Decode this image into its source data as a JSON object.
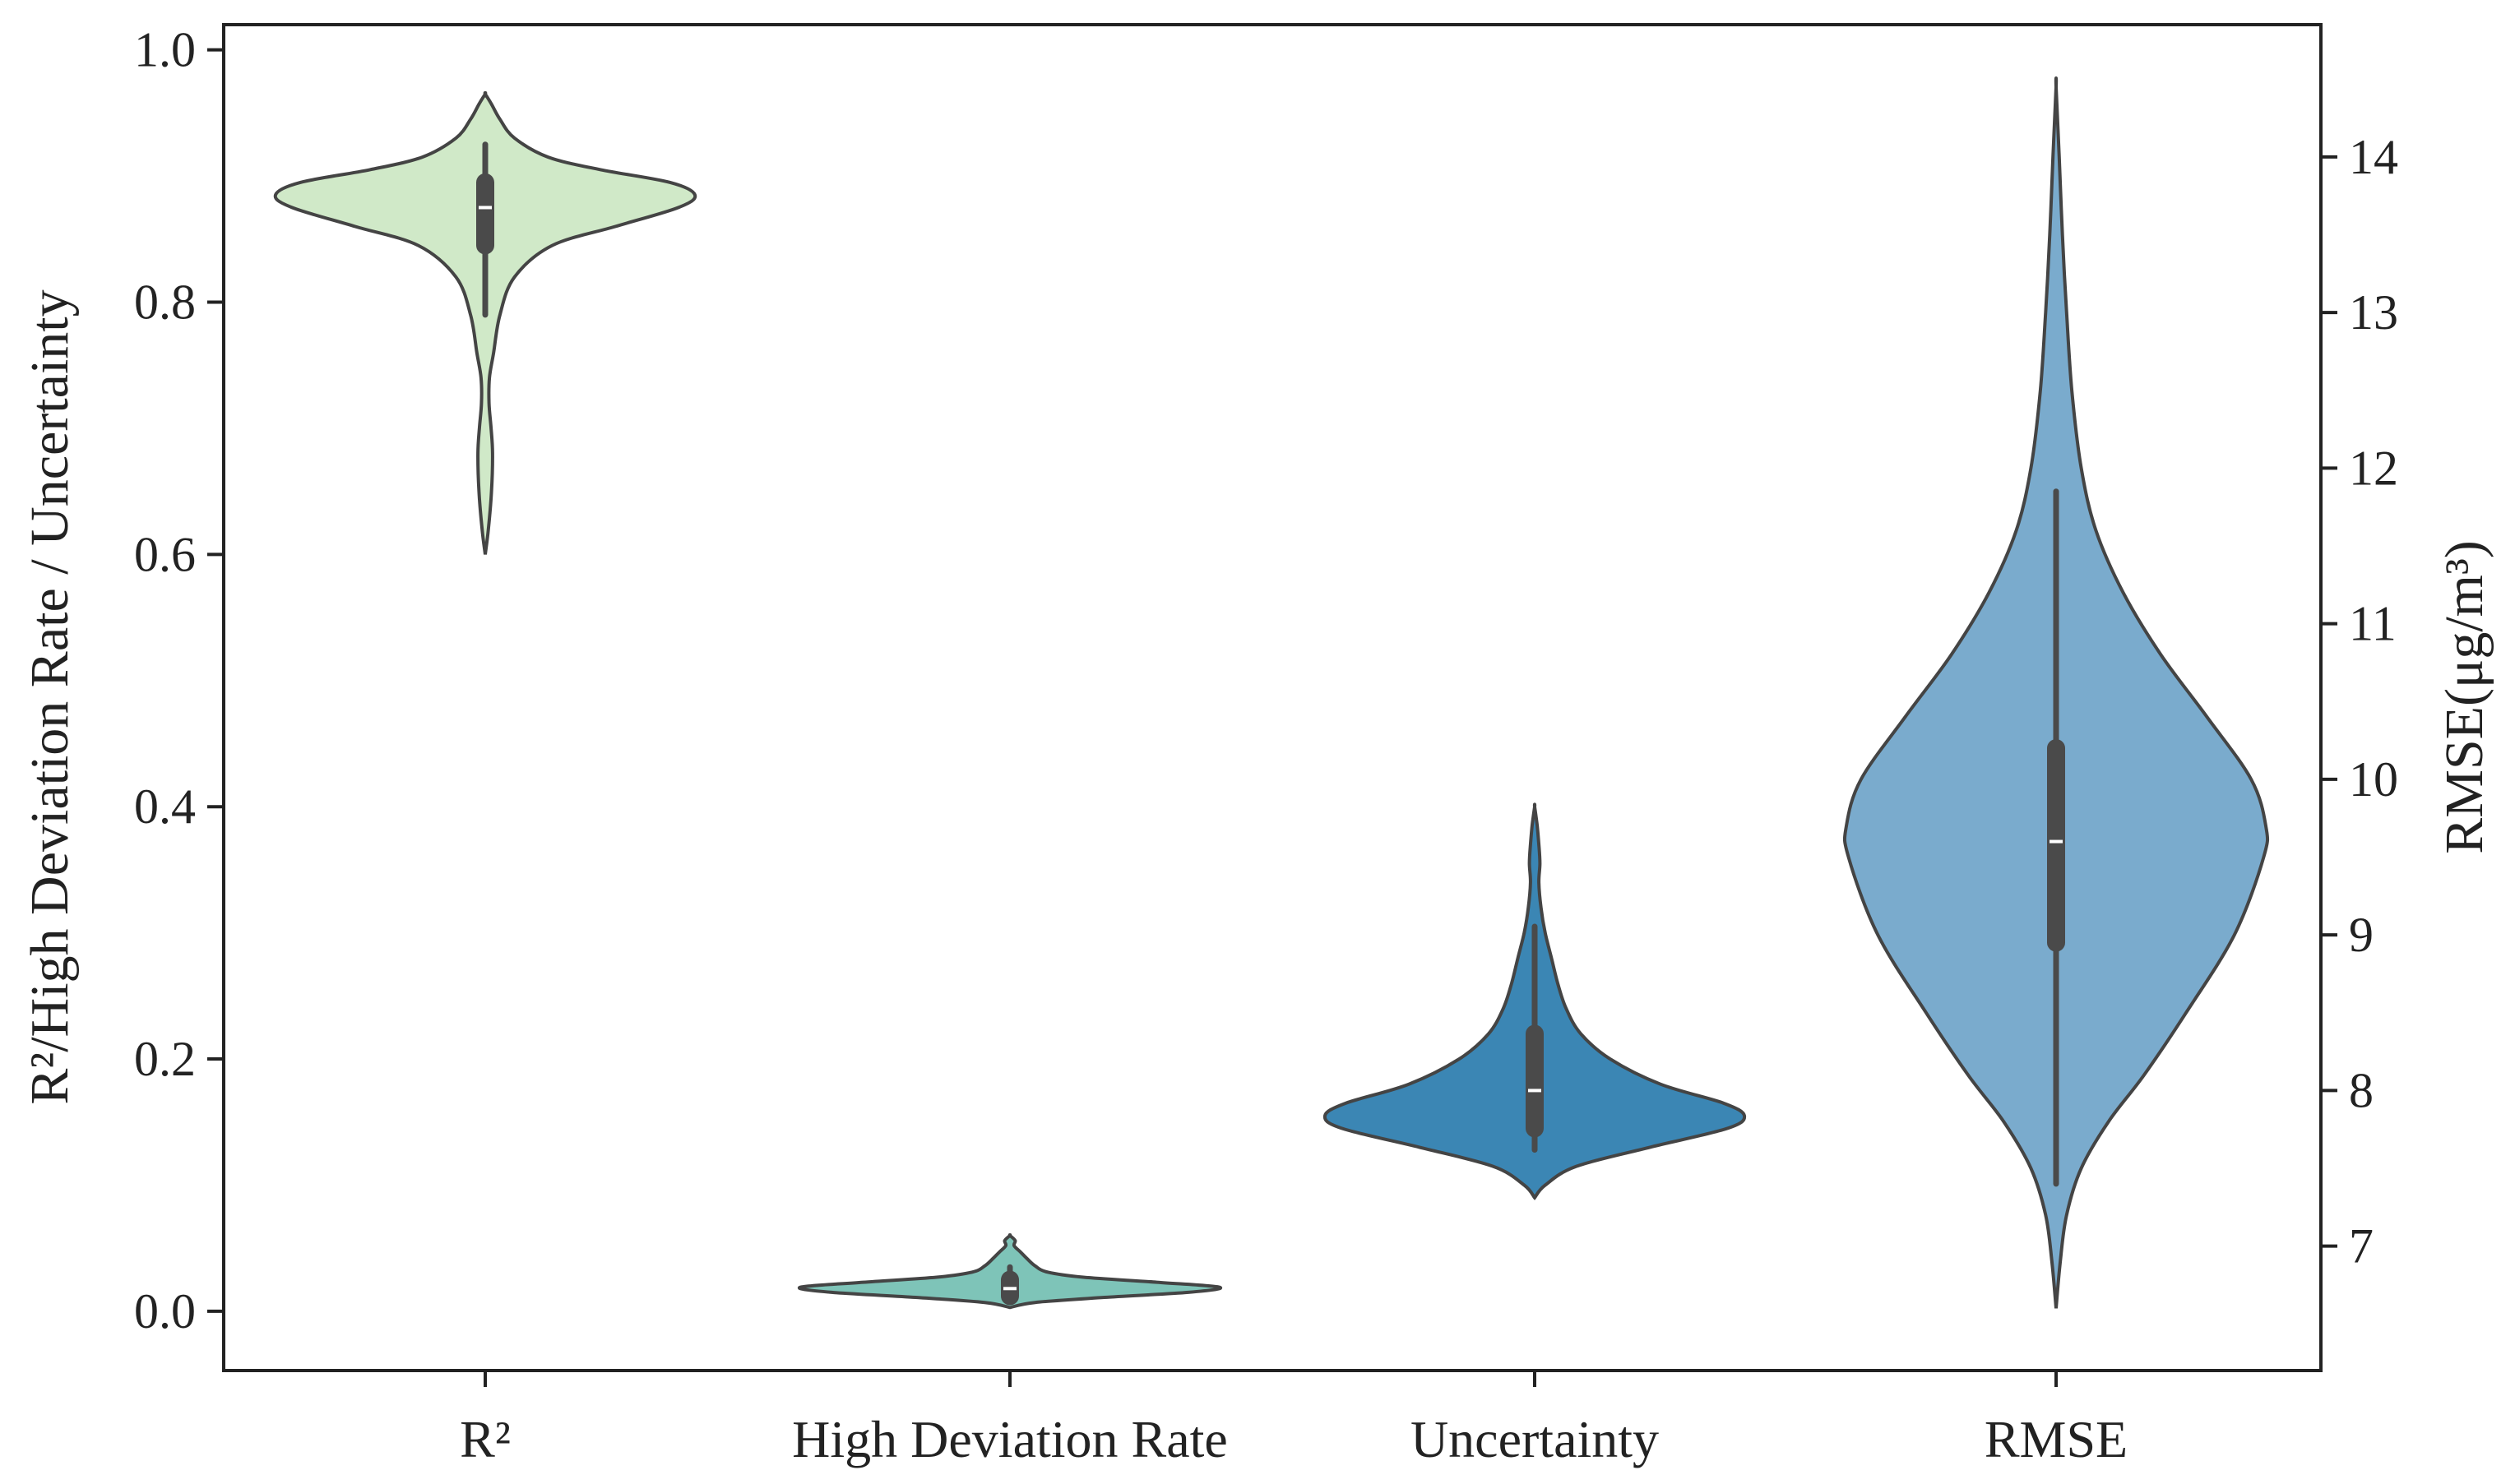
{
  "chart_data": {
    "type": "violin",
    "title": "",
    "categories": [
      "R²",
      "High Deviation Rate",
      "Uncertainty",
      "RMSE"
    ],
    "ylabel_left": "R²/High Deviation Rate / Uncertainty",
    "ylabel_right": "RMSE(μg/m³)",
    "left_ticks": [
      "0.0",
      "0.2",
      "0.4",
      "0.6",
      "0.8",
      "1.0"
    ],
    "right_ticks": [
      "7",
      "8",
      "9",
      "10",
      "11",
      "12",
      "13",
      "14"
    ],
    "ylim_left": [
      -0.047,
      1.02
    ],
    "ylim_right": [
      6.2,
      14.85
    ],
    "grid": false,
    "series": [
      {
        "name": "R²",
        "axis": "left",
        "color": "#d0e9c8",
        "min": 0.6,
        "max": 0.965,
        "whisker_low": 0.79,
        "q1": 0.845,
        "median": 0.875,
        "q3": 0.895,
        "whisker_high": 0.925,
        "profile": [
          [
            0.6,
            0.0
          ],
          [
            0.62,
            0.015
          ],
          [
            0.65,
            0.03
          ],
          [
            0.68,
            0.035
          ],
          [
            0.7,
            0.028
          ],
          [
            0.72,
            0.018
          ],
          [
            0.74,
            0.02
          ],
          [
            0.76,
            0.04
          ],
          [
            0.79,
            0.07
          ],
          [
            0.82,
            0.14
          ],
          [
            0.845,
            0.32
          ],
          [
            0.86,
            0.62
          ],
          [
            0.875,
            0.92
          ],
          [
            0.885,
            1.0
          ],
          [
            0.895,
            0.88
          ],
          [
            0.905,
            0.55
          ],
          [
            0.915,
            0.3
          ],
          [
            0.93,
            0.14
          ],
          [
            0.945,
            0.07
          ],
          [
            0.957,
            0.03
          ],
          [
            0.965,
            0.0
          ]
        ]
      },
      {
        "name": "High Deviation Rate",
        "axis": "left",
        "color": "#7ec4b8",
        "min": 0.003,
        "max": 0.06,
        "whisker_low": 0.008,
        "q1": 0.012,
        "median": 0.018,
        "q3": 0.025,
        "whisker_high": 0.035,
        "profile": [
          [
            0.003,
            0.0
          ],
          [
            0.007,
            0.12
          ],
          [
            0.011,
            0.45
          ],
          [
            0.015,
            0.85
          ],
          [
            0.019,
            1.0
          ],
          [
            0.023,
            0.7
          ],
          [
            0.027,
            0.35
          ],
          [
            0.031,
            0.18
          ],
          [
            0.036,
            0.12
          ],
          [
            0.042,
            0.08
          ],
          [
            0.047,
            0.05
          ],
          [
            0.052,
            0.02
          ],
          [
            0.056,
            0.025
          ],
          [
            0.06,
            0.0
          ]
        ]
      },
      {
        "name": "Uncertainty",
        "axis": "left",
        "color": "#3b86b4",
        "min": 0.09,
        "max": 0.4,
        "whisker_low": 0.128,
        "q1": 0.145,
        "median": 0.175,
        "q3": 0.22,
        "whisker_high": 0.305,
        "profile": [
          [
            0.09,
            0.0
          ],
          [
            0.1,
            0.05
          ],
          [
            0.115,
            0.2
          ],
          [
            0.13,
            0.55
          ],
          [
            0.145,
            0.92
          ],
          [
            0.155,
            1.0
          ],
          [
            0.165,
            0.9
          ],
          [
            0.18,
            0.6
          ],
          [
            0.2,
            0.36
          ],
          [
            0.22,
            0.22
          ],
          [
            0.24,
            0.15
          ],
          [
            0.26,
            0.11
          ],
          [
            0.28,
            0.08
          ],
          [
            0.3,
            0.05
          ],
          [
            0.32,
            0.03
          ],
          [
            0.34,
            0.02
          ],
          [
            0.355,
            0.025
          ],
          [
            0.37,
            0.02
          ],
          [
            0.385,
            0.012
          ],
          [
            0.4,
            0.0
          ]
        ]
      },
      {
        "name": "RMSE",
        "axis": "right",
        "color": "#7aabcd",
        "min": 6.6,
        "max": 14.45,
        "whisker_low": 7.4,
        "q1": 8.95,
        "median": 9.6,
        "q3": 10.2,
        "whisker_high": 11.85,
        "profile": [
          [
            6.6,
            0.0
          ],
          [
            6.9,
            0.02
          ],
          [
            7.2,
            0.05
          ],
          [
            7.5,
            0.12
          ],
          [
            7.8,
            0.25
          ],
          [
            8.1,
            0.42
          ],
          [
            8.5,
            0.62
          ],
          [
            9.0,
            0.85
          ],
          [
            9.5,
            0.99
          ],
          [
            9.7,
            1.0
          ],
          [
            10.0,
            0.93
          ],
          [
            10.4,
            0.72
          ],
          [
            10.8,
            0.5
          ],
          [
            11.2,
            0.32
          ],
          [
            11.6,
            0.19
          ],
          [
            12.0,
            0.12
          ],
          [
            12.5,
            0.075
          ],
          [
            13.0,
            0.05
          ],
          [
            13.5,
            0.03
          ],
          [
            14.0,
            0.015
          ],
          [
            14.45,
            0.0
          ]
        ]
      }
    ]
  }
}
